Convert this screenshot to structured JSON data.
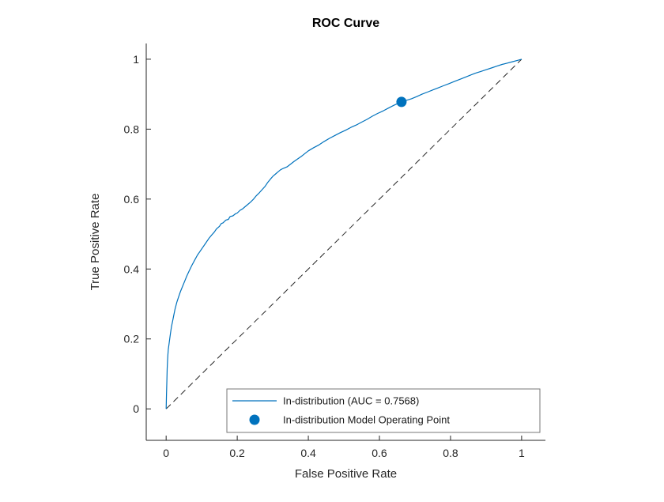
{
  "figure": {
    "title": "ROC Curve"
  },
  "chart_data": {
    "type": "line",
    "title": "ROC Curve",
    "xlabel": "False Positive Rate",
    "ylabel": "True Positive Rate",
    "xlim": [
      -0.056,
      1.067
    ],
    "ylim": [
      -0.09,
      1.045
    ],
    "xticks": [
      0,
      0.2,
      0.4,
      0.6,
      0.8,
      1
    ],
    "xtick_labels": [
      "0",
      "0.2",
      "0.4",
      "0.6",
      "0.8",
      "1"
    ],
    "yticks": [
      0,
      0.2,
      0.4,
      0.6,
      0.8,
      1
    ],
    "ytick_labels": [
      "0",
      "0.2",
      "0.4",
      "0.6",
      "0.8",
      "1"
    ],
    "grid": false,
    "background": "#ffffff",
    "axis_color": "#262626",
    "series": [
      {
        "id": "in-distribution-roc",
        "name": "In-distribution (AUC = 0.7568)",
        "type": "line",
        "color": "#0072BD",
        "width": 1.2,
        "auc": 0.7568,
        "points": [
          [
            0,
            0
          ],
          [
            0.001,
            0.04
          ],
          [
            0.002,
            0.08
          ],
          [
            0.003,
            0.115
          ],
          [
            0.004,
            0.14
          ],
          [
            0.005,
            0.155
          ],
          [
            0.006,
            0.17
          ],
          [
            0.008,
            0.185
          ],
          [
            0.01,
            0.2
          ],
          [
            0.012,
            0.215
          ],
          [
            0.015,
            0.235
          ],
          [
            0.018,
            0.25
          ],
          [
            0.021,
            0.265
          ],
          [
            0.025,
            0.285
          ],
          [
            0.03,
            0.305
          ],
          [
            0.035,
            0.32
          ],
          [
            0.04,
            0.335
          ],
          [
            0.046,
            0.35
          ],
          [
            0.052,
            0.365
          ],
          [
            0.058,
            0.38
          ],
          [
            0.065,
            0.395
          ],
          [
            0.072,
            0.41
          ],
          [
            0.08,
            0.425
          ],
          [
            0.088,
            0.44
          ],
          [
            0.095,
            0.45
          ],
          [
            0.103,
            0.462
          ],
          [
            0.112,
            0.475
          ],
          [
            0.12,
            0.487
          ],
          [
            0.128,
            0.497
          ],
          [
            0.135,
            0.505
          ],
          [
            0.142,
            0.515
          ],
          [
            0.15,
            0.522
          ],
          [
            0.155,
            0.53
          ],
          [
            0.16,
            0.532
          ],
          [
            0.168,
            0.54
          ],
          [
            0.175,
            0.542
          ],
          [
            0.18,
            0.55
          ],
          [
            0.188,
            0.552
          ],
          [
            0.195,
            0.558
          ],
          [
            0.2,
            0.56
          ],
          [
            0.208,
            0.568
          ],
          [
            0.215,
            0.572
          ],
          [
            0.222,
            0.578
          ],
          [
            0.23,
            0.585
          ],
          [
            0.238,
            0.592
          ],
          [
            0.246,
            0.6
          ],
          [
            0.254,
            0.61
          ],
          [
            0.262,
            0.618
          ],
          [
            0.27,
            0.627
          ],
          [
            0.278,
            0.636
          ],
          [
            0.286,
            0.648
          ],
          [
            0.294,
            0.658
          ],
          [
            0.3,
            0.665
          ],
          [
            0.308,
            0.672
          ],
          [
            0.315,
            0.678
          ],
          [
            0.322,
            0.684
          ],
          [
            0.33,
            0.688
          ],
          [
            0.34,
            0.692
          ],
          [
            0.35,
            0.7
          ],
          [
            0.36,
            0.708
          ],
          [
            0.37,
            0.715
          ],
          [
            0.38,
            0.722
          ],
          [
            0.39,
            0.73
          ],
          [
            0.4,
            0.738
          ],
          [
            0.415,
            0.747
          ],
          [
            0.43,
            0.755
          ],
          [
            0.445,
            0.765
          ],
          [
            0.46,
            0.774
          ],
          [
            0.475,
            0.782
          ],
          [
            0.49,
            0.79
          ],
          [
            0.505,
            0.797
          ],
          [
            0.52,
            0.805
          ],
          [
            0.535,
            0.812
          ],
          [
            0.55,
            0.82
          ],
          [
            0.565,
            0.828
          ],
          [
            0.58,
            0.837
          ],
          [
            0.595,
            0.845
          ],
          [
            0.61,
            0.852
          ],
          [
            0.625,
            0.86
          ],
          [
            0.64,
            0.868
          ],
          [
            0.655,
            0.875
          ],
          [
            0.662,
            0.878
          ],
          [
            0.675,
            0.882
          ],
          [
            0.69,
            0.887
          ],
          [
            0.705,
            0.893
          ],
          [
            0.72,
            0.9
          ],
          [
            0.735,
            0.906
          ],
          [
            0.75,
            0.912
          ],
          [
            0.765,
            0.918
          ],
          [
            0.78,
            0.924
          ],
          [
            0.795,
            0.93
          ],
          [
            0.81,
            0.936
          ],
          [
            0.825,
            0.942
          ],
          [
            0.84,
            0.948
          ],
          [
            0.855,
            0.954
          ],
          [
            0.87,
            0.96
          ],
          [
            0.885,
            0.965
          ],
          [
            0.9,
            0.97
          ],
          [
            0.915,
            0.975
          ],
          [
            0.93,
            0.98
          ],
          [
            0.945,
            0.985
          ],
          [
            0.96,
            0.989
          ],
          [
            0.975,
            0.993
          ],
          [
            0.99,
            0.997
          ],
          [
            1,
            1
          ]
        ]
      },
      {
        "id": "operating-point",
        "name": "In-distribution Model Operating Point",
        "type": "scatter",
        "color": "#0072BD",
        "marker_radius": 6.5,
        "points": [
          [
            0.662,
            0.878
          ]
        ]
      },
      {
        "id": "chance-diagonal",
        "type": "dashed-line",
        "color": "#262626",
        "width": 1,
        "points": [
          [
            0,
            0
          ],
          [
            1,
            1
          ]
        ]
      }
    ],
    "legend": {
      "position": "inside-bottom",
      "items": [
        {
          "label": "In-distribution (AUC = 0.7568)",
          "marker": "line"
        },
        {
          "label": "In-distribution Model Operating Point",
          "marker": "dot"
        }
      ]
    }
  }
}
